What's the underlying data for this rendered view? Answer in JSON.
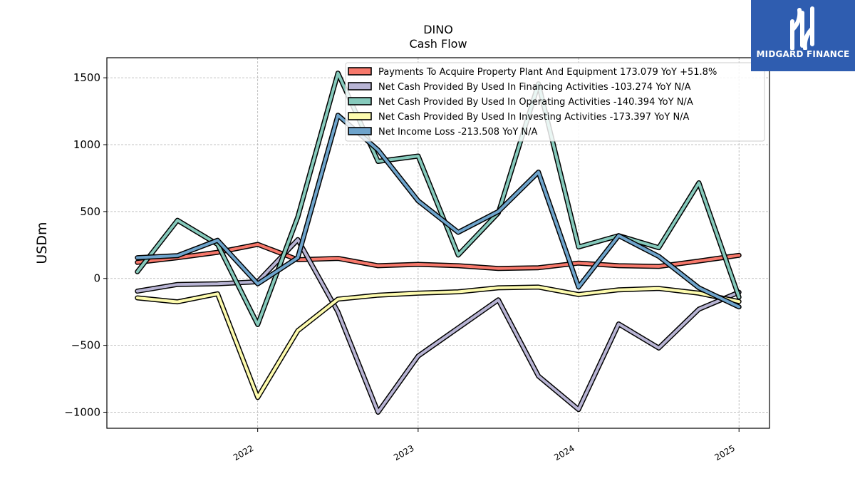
{
  "chart_data": {
    "type": "line",
    "title": "DINO",
    "subtitle": "Cash Flow",
    "ylabel": "USDm",
    "xlabel": "",
    "ylim": [
      -1120,
      1650
    ],
    "xlim": [
      2021.06,
      2025.19
    ],
    "yticks": [
      1500,
      1000,
      500,
      0,
      -500,
      -1000
    ],
    "ytick_labels": [
      "1500",
      "1000",
      "500",
      "0",
      "−500",
      "−1000"
    ],
    "xticks": [
      2022,
      2023,
      2024,
      2025
    ],
    "xtick_labels": [
      "2022",
      "2023",
      "2024",
      "2025"
    ],
    "grid": true,
    "legend_position": "top-right",
    "x": [
      2021.25,
      2021.5,
      2021.75,
      2022.0,
      2022.25,
      2022.5,
      2022.75,
      2023.0,
      2023.25,
      2023.5,
      2023.75,
      2024.0,
      2024.25,
      2024.5,
      2024.75,
      2025.0
    ],
    "series": [
      {
        "name": "Payments To Acquire Property Plant And Equipment",
        "legend_label": "Payments To Acquire Property Plant And Equipment  173.079 YoY +51.8%",
        "color": "#f7786b",
        "values": [
          120,
          155,
          195,
          255,
          140,
          150,
          95,
          105,
          95,
          75,
          80,
          115,
          95,
          90,
          130,
          173
        ]
      },
      {
        "name": "Net Cash Provided By Used In Financing Activities",
        "legend_label": "Net Cash Provided By Used In Financing Activities  -103.274 YoY N/A",
        "color": "#b8b4d4",
        "values": [
          -95,
          -45,
          -40,
          -25,
          290,
          -250,
          -1000,
          -580,
          -370,
          -160,
          -730,
          -980,
          -340,
          -520,
          -230,
          -103
        ]
      },
      {
        "name": "Net Cash Provided By Used In Operating Activities",
        "legend_label": "Net Cash Provided By Used In Operating Activities  -140.394 YoY N/A",
        "color": "#86cabc",
        "values": [
          50,
          435,
          255,
          -345,
          460,
          1535,
          875,
          915,
          175,
          490,
          1455,
          235,
          320,
          230,
          715,
          -140
        ]
      },
      {
        "name": "Net Cash Provided By Used In Investing Activities",
        "legend_label": "Net Cash Provided By Used In Investing Activities  -173.397 YoY N/A",
        "color": "#fdfbae",
        "values": [
          -145,
          -175,
          -115,
          -890,
          -390,
          -155,
          -125,
          -110,
          -100,
          -70,
          -65,
          -120,
          -85,
          -75,
          -110,
          -173
        ]
      },
      {
        "name": "Net Income Loss",
        "legend_label": "Net Income Loss  -213.508 YoY N/A",
        "color": "#6ea4cc",
        "values": [
          155,
          170,
          285,
          -40,
          155,
          1220,
          960,
          580,
          345,
          500,
          795,
          -65,
          320,
          165,
          -70,
          -213
        ]
      }
    ]
  },
  "logo": {
    "text": "MIDGARD FINANCE",
    "color": "#2f5db0"
  }
}
